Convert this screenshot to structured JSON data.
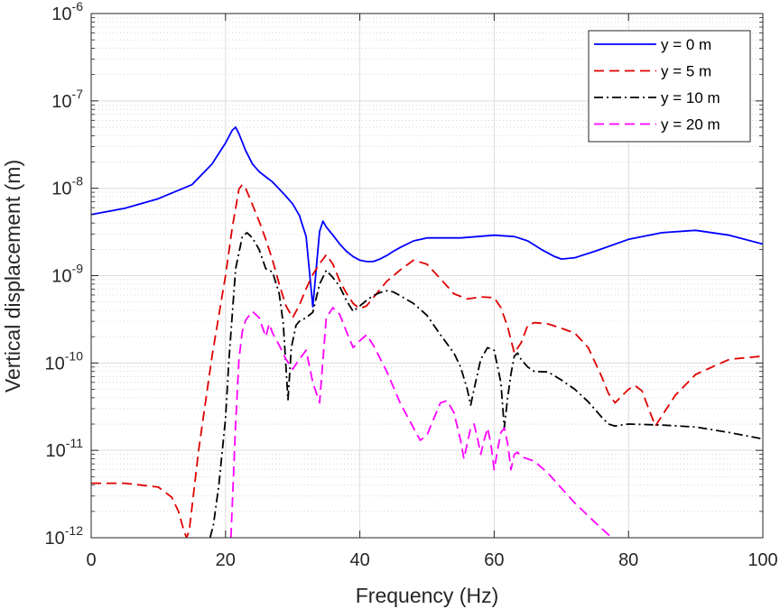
{
  "chart_data": {
    "type": "line",
    "xlabel": "Frequency (Hz)",
    "ylabel": "Vertical displacement (m)",
    "xlim": [
      0,
      100
    ],
    "ylim": [
      1e-12,
      1e-06
    ],
    "yscale": "log",
    "grid": true,
    "minor_grid": true,
    "legend_position": "top-right",
    "x_ticks": [
      0,
      20,
      40,
      60,
      80,
      100
    ],
    "x_tick_labels": [
      "0",
      "20",
      "40",
      "60",
      "80",
      "100"
    ],
    "y_ticks": [
      {
        "value": 1e-12,
        "base": "10",
        "exp": "-12"
      },
      {
        "value": 1e-11,
        "base": "10",
        "exp": "-11"
      },
      {
        "value": 1e-10,
        "base": "10",
        "exp": "-10"
      },
      {
        "value": 1e-09,
        "base": "10",
        "exp": "-9"
      },
      {
        "value": 1e-08,
        "base": "10",
        "exp": "-8"
      },
      {
        "value": 1e-07,
        "base": "10",
        "exp": "-7"
      },
      {
        "value": 1e-06,
        "base": "10",
        "exp": "-6"
      }
    ],
    "series": [
      {
        "name": "y = 0 m",
        "color": "#0000ff",
        "style": "solid",
        "x": [
          0,
          5,
          10,
          15,
          18,
          20,
          21,
          21.5,
          22,
          23,
          24,
          25,
          26,
          27,
          28,
          29,
          30,
          31,
          32,
          33,
          34,
          34.5,
          35,
          36,
          37,
          38,
          39,
          40,
          41,
          42,
          43,
          44,
          45,
          46,
          48,
          50,
          55,
          60,
          63,
          65,
          67,
          69,
          70,
          72,
          75,
          80,
          85,
          90,
          95,
          100
        ],
        "y": [
          5e-09,
          5.9e-09,
          7.6e-09,
          1.1e-08,
          1.9e-08,
          3.3e-08,
          4.6e-08,
          5e-08,
          4.2e-08,
          2.7e-08,
          1.9e-08,
          1.55e-08,
          1.35e-08,
          1.18e-08,
          9.8e-09,
          8.1e-09,
          6.6e-09,
          4.9e-09,
          2.8e-09,
          4.4e-10,
          3.2e-09,
          4.2e-09,
          3.6e-09,
          2.9e-09,
          2.3e-09,
          1.9e-09,
          1.65e-09,
          1.5e-09,
          1.45e-09,
          1.45e-09,
          1.55e-09,
          1.7e-09,
          1.9e-09,
          2.1e-09,
          2.5e-09,
          2.7e-09,
          2.7e-09,
          2.9e-09,
          2.8e-09,
          2.5e-09,
          2e-09,
          1.65e-09,
          1.55e-09,
          1.6e-09,
          1.9e-09,
          2.6e-09,
          3.1e-09,
          3.3e-09,
          2.9e-09,
          2.3e-09
        ]
      },
      {
        "name": "y = 5 m",
        "color": "#e00000",
        "style": "dash",
        "x": [
          0,
          5,
          10,
          12,
          13,
          13.8,
          14.2,
          14.6,
          16,
          18,
          20,
          21,
          22,
          22.5,
          23,
          24,
          25,
          26,
          27,
          28,
          29,
          30,
          31,
          32,
          33,
          34,
          35,
          36,
          37,
          38,
          39,
          40,
          41,
          42,
          44,
          46,
          48,
          50,
          52,
          54,
          56,
          58,
          60,
          61,
          62,
          63,
          64,
          65,
          66,
          68,
          70,
          72,
          74,
          76,
          77,
          78,
          79,
          80,
          81,
          82,
          83,
          84,
          85,
          87,
          90,
          95,
          100
        ],
        "y": [
          4.2e-12,
          4.2e-12,
          3.8e-12,
          2.9e-12,
          2e-12,
          1.2e-12,
          1e-12,
          1.2e-12,
          1e-11,
          1.2e-10,
          1e-09,
          3.5e-09,
          9.8e-09,
          1.1e-08,
          1e-08,
          6.5e-09,
          4.2e-09,
          2.6e-09,
          1.5e-09,
          8e-10,
          4.5e-10,
          3.3e-10,
          4.6e-10,
          7.1e-10,
          1.03e-09,
          1.37e-09,
          1.73e-09,
          1.35e-09,
          8.7e-10,
          6.3e-10,
          4.8e-10,
          4.2e-10,
          4.5e-10,
          5.6e-10,
          8.6e-10,
          1.16e-09,
          1.5e-09,
          1.35e-09,
          9.2e-10,
          6.2e-10,
          5.4e-10,
          5.7e-10,
          5.6e-10,
          4.3e-10,
          2.6e-10,
          1.3e-10,
          1.7e-10,
          2.7e-10,
          2.9e-10,
          2.8e-10,
          2.5e-10,
          2.2e-10,
          1.5e-10,
          7e-11,
          4.5e-11,
          3.5e-11,
          4.2e-11,
          5e-11,
          5.5e-11,
          4.8e-11,
          3e-11,
          1.9e-11,
          2.5e-11,
          4.3e-11,
          7.4e-11,
          1.1e-10,
          1.2e-10
        ]
      },
      {
        "name": "y = 10 m",
        "color": "#000000",
        "style": "dashdot",
        "x": [
          17.7,
          18.2,
          19,
          20,
          20.5,
          21.5,
          22.5,
          23.2,
          24,
          25,
          26,
          27,
          28,
          28.6,
          29.3,
          29.8,
          30.5,
          31,
          32,
          33,
          34,
          35,
          36,
          37,
          38,
          39,
          40,
          41,
          42,
          43,
          44,
          45,
          46,
          48,
          50,
          52,
          54,
          55,
          56,
          56.5,
          57,
          58,
          59,
          60,
          61,
          61.5,
          62,
          62.5,
          63,
          63.5,
          64,
          65,
          66,
          68,
          70,
          72,
          74,
          76,
          77,
          78,
          80,
          85,
          90,
          95,
          100
        ],
        "y": [
          1e-12,
          1.4e-12,
          4e-12,
          2.3e-11,
          1.05e-10,
          1.2e-09,
          2.8e-09,
          3.1e-09,
          2.7e-09,
          2e-09,
          1.2e-09,
          1.1e-09,
          6.2e-10,
          2.8e-10,
          3.8e-11,
          1.5e-10,
          2.7e-10,
          3e-10,
          3.3e-10,
          3.8e-10,
          8e-10,
          1.15e-09,
          9.5e-10,
          7.5e-10,
          5.2e-10,
          3.9e-10,
          4.5e-10,
          5.2e-10,
          5.9e-10,
          6.4e-10,
          6.7e-10,
          6.5e-10,
          5.9e-10,
          4.8e-10,
          3.5e-10,
          2.1e-10,
          1.3e-10,
          9e-11,
          5e-11,
          3.3e-11,
          5e-11,
          1.1e-10,
          1.5e-10,
          1.4e-10,
          6e-11,
          1.8e-11,
          4e-11,
          7.5e-11,
          1.2e-10,
          1.3e-10,
          1.1e-10,
          9e-11,
          8e-11,
          7.9e-11,
          6.4e-11,
          5e-11,
          3.6e-11,
          2.4e-11,
          2e-11,
          1.9e-11,
          2e-11,
          1.95e-11,
          1.85e-11,
          1.6e-11,
          1.35e-11
        ]
      },
      {
        "name": "y = 20 m",
        "color": "#ff00ff",
        "style": "dash",
        "x": [
          20.8,
          21.5,
          22,
          22.5,
          23,
          24,
          25,
          26,
          26.5,
          27,
          28,
          29,
          30,
          31,
          32,
          33,
          34,
          35,
          36,
          37,
          38,
          39,
          40,
          41,
          42,
          44,
          46,
          48,
          49,
          50,
          51,
          52,
          53,
          54,
          55,
          55.5,
          56,
          56.5,
          57,
          57.5,
          58,
          58.5,
          59,
          59.5,
          60,
          60.5,
          61,
          61.5,
          62,
          62.5,
          63,
          63.5,
          64,
          66,
          68,
          70,
          72,
          75,
          77.5
        ],
        "y": [
          1e-12,
          2e-11,
          1.1e-10,
          2.3e-10,
          3.1e-10,
          3.9e-10,
          3.3e-10,
          2e-10,
          2.8e-10,
          2.2e-10,
          1.6e-10,
          1.1e-10,
          8.5e-11,
          1.1e-10,
          1.4e-10,
          6e-11,
          3.5e-11,
          3.3e-10,
          4.3e-10,
          3.6e-10,
          2.3e-10,
          1.5e-10,
          1.8e-10,
          2.1e-10,
          1.6e-10,
          8e-11,
          3.5e-11,
          1.8e-11,
          1.3e-11,
          1.5e-11,
          2.3e-11,
          3.5e-11,
          3.7e-11,
          2.7e-11,
          1.3e-11,
          8e-12,
          1.2e-11,
          1.8e-11,
          2e-11,
          1.4e-11,
          9e-12,
          1.3e-11,
          1.8e-11,
          1.2e-11,
          6e-12,
          1e-11,
          1.6e-11,
          1.8e-11,
          1.2e-11,
          6e-12,
          9e-12,
          9.5e-12,
          8.5e-12,
          7.5e-12,
          5.5e-12,
          3.7e-12,
          2.5e-12,
          1.5e-12,
          1e-12
        ]
      }
    ]
  }
}
